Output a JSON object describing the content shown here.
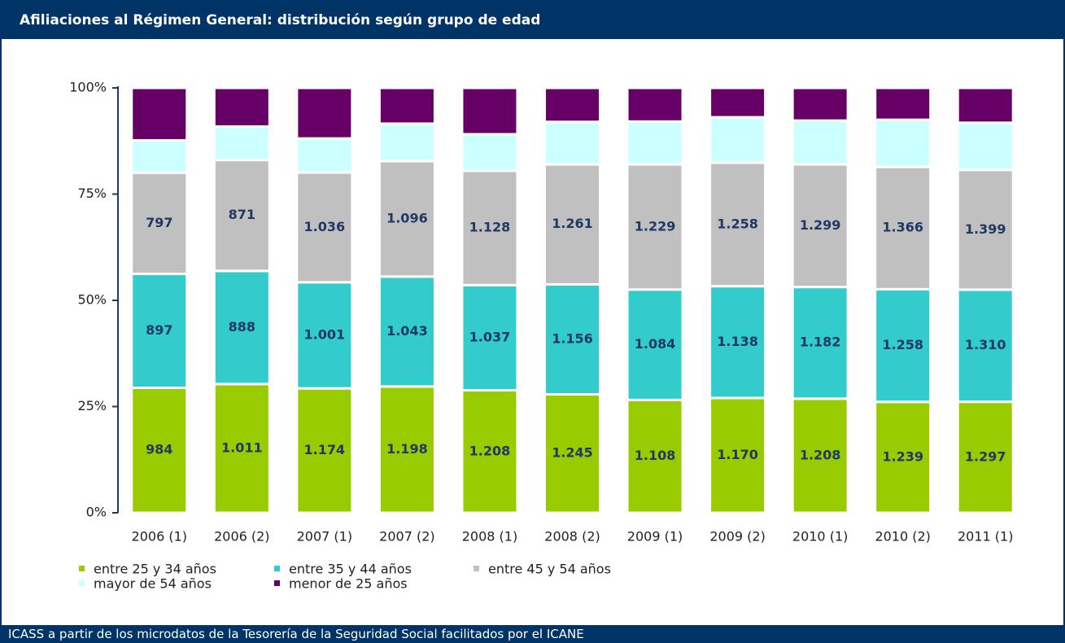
{
  "header": {
    "title": "Afiliaciones al Régimen General: distribución según grupo de edad"
  },
  "chart_data": {
    "type": "bar",
    "stacking": "percent",
    "categories": [
      "2006 (1)",
      "2006 (2)",
      "2007 (1)",
      "2007 (2)",
      "2008 (1)",
      "2008 (2)",
      "2009 (1)",
      "2009 (2)",
      "2010 (1)",
      "2010 (2)",
      "2011 (1)"
    ],
    "series": [
      {
        "name": "entre 25 y 34 años",
        "color": "#99cc00",
        "values": [
          984,
          1011,
          1174,
          1198,
          1208,
          1245,
          1108,
          1170,
          1208,
          1239,
          1297
        ],
        "value_labels": [
          "984",
          "1.011",
          "1.174",
          "1.198",
          "1.208",
          "1.245",
          "1.108",
          "1.170",
          "1.208",
          "1.239",
          "1.297"
        ]
      },
      {
        "name": "entre 35 y 44 años",
        "color": "#33cccc",
        "values": [
          897,
          888,
          1001,
          1043,
          1037,
          1156,
          1084,
          1138,
          1182,
          1258,
          1310
        ],
        "value_labels": [
          "897",
          "888",
          "1.001",
          "1.043",
          "1.037",
          "1.156",
          "1.084",
          "1.138",
          "1.182",
          "1.258",
          "1.310"
        ]
      },
      {
        "name": "entre 45 y 54 años",
        "color": "#c0c0c0",
        "values": [
          797,
          871,
          1036,
          1096,
          1128,
          1261,
          1229,
          1258,
          1299,
          1366,
          1399
        ],
        "value_labels": [
          "797",
          "871",
          "1.036",
          "1.096",
          "1.128",
          "1.261",
          "1.229",
          "1.258",
          "1.299",
          "1.366",
          "1.399"
        ]
      },
      {
        "name": "mayor de 54 años",
        "color": "#ccffff",
        "values": [
          255,
          263,
          321,
          355,
          360,
          447,
          421,
          463,
          463,
          527,
          551
        ]
      },
      {
        "name": "menor de 25 años",
        "color": "#660066",
        "values": [
          413,
          303,
          477,
          339,
          457,
          357,
          330,
          299,
          346,
          356,
          407
        ]
      }
    ],
    "ylim": [
      0,
      100
    ],
    "yticks": [
      {
        "value": 0,
        "label": "0%"
      },
      {
        "value": 25,
        "label": "25%"
      },
      {
        "value": 50,
        "label": "50%"
      },
      {
        "value": 75,
        "label": "75%"
      },
      {
        "value": 100,
        "label": "100%"
      }
    ],
    "grid": false
  },
  "footer": {
    "source": "ICASS a partir de los microdatos de la Tesorería de la Seguridad Social facilitados por el ICANE"
  }
}
